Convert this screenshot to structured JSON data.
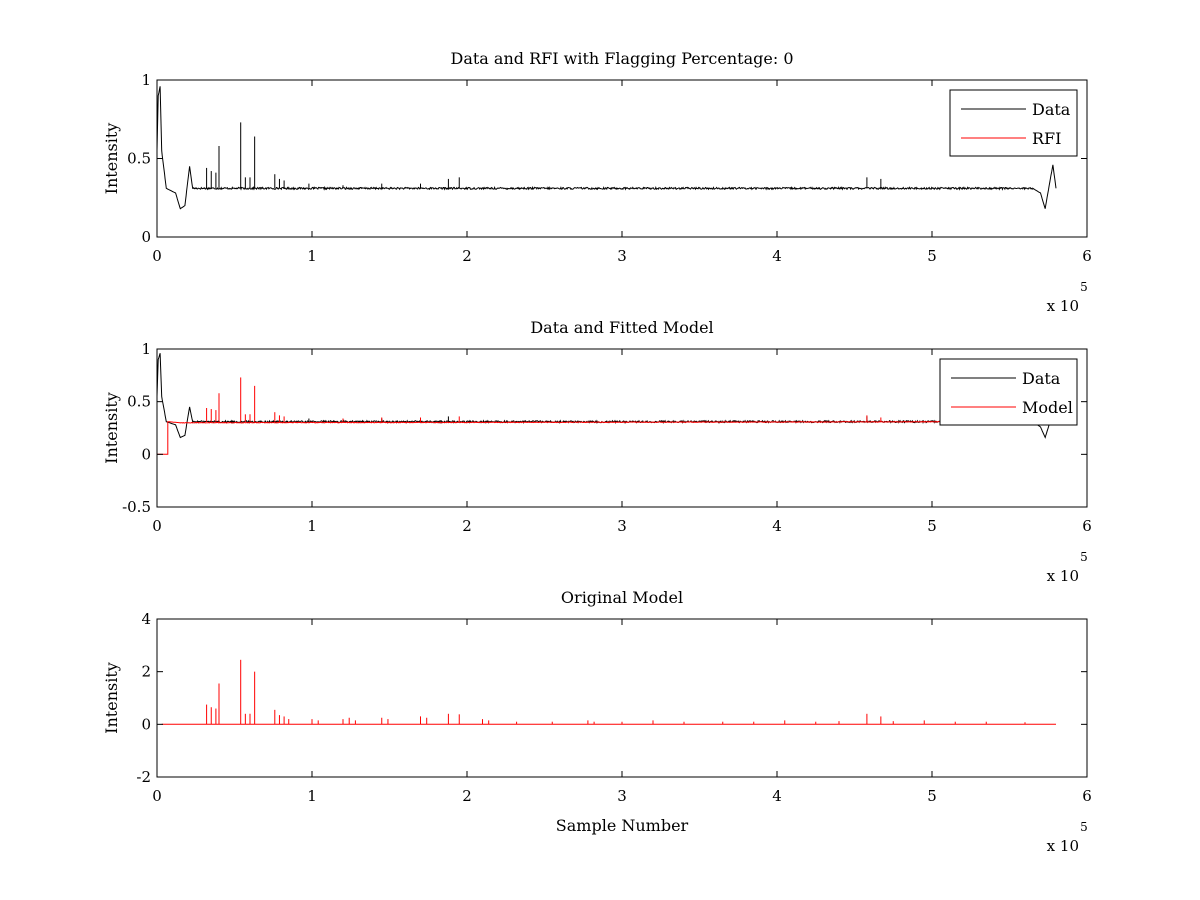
{
  "chart_data": [
    {
      "type": "line",
      "title": "Data and RFI with Flagging Percentage: 0",
      "xlabel": "",
      "ylabel": "Intensity",
      "xlim": [
        0,
        6
      ],
      "ylim": [
        0,
        1
      ],
      "x_multiplier": "x 10",
      "x_multiplier_exponent": "5",
      "xticks": [
        "0",
        "1",
        "2",
        "3",
        "4",
        "5",
        "6"
      ],
      "yticks": [
        "0",
        "0.5",
        "1"
      ],
      "legend": {
        "position": "top-right",
        "entries": [
          {
            "label": "Data",
            "color": "#000000"
          },
          {
            "label": "RFI",
            "color": "#ff0000"
          }
        ]
      },
      "series": [
        {
          "name": "Data",
          "color": "#000000",
          "baseline": 0.31,
          "points": [
            [
              0,
              0.55
            ],
            [
              0.008,
              0.9
            ],
            [
              0.02,
              0.96
            ],
            [
              0.03,
              0.55
            ],
            [
              0.06,
              0.31
            ],
            [
              0.12,
              0.28
            ],
            [
              0.15,
              0.18
            ],
            [
              0.18,
              0.2
            ],
            [
              0.21,
              0.45
            ],
            [
              0.23,
              0.31
            ],
            [
              5.65,
              0.31
            ],
            [
              5.7,
              0.28
            ],
            [
              5.73,
              0.18
            ],
            [
              5.76,
              0.35
            ],
            [
              5.78,
              0.46
            ],
            [
              5.8,
              0.31
            ]
          ],
          "spikes": [
            [
              0.32,
              0.44
            ],
            [
              0.35,
              0.42
            ],
            [
              0.38,
              0.41
            ],
            [
              0.4,
              0.58
            ],
            [
              0.54,
              0.73
            ],
            [
              0.57,
              0.38
            ],
            [
              0.6,
              0.38
            ],
            [
              0.63,
              0.64
            ],
            [
              0.76,
              0.4
            ],
            [
              0.79,
              0.37
            ],
            [
              0.82,
              0.36
            ],
            [
              0.98,
              0.34
            ],
            [
              1.2,
              0.33
            ],
            [
              1.45,
              0.34
            ],
            [
              1.7,
              0.34
            ],
            [
              1.88,
              0.37
            ],
            [
              1.95,
              0.38
            ],
            [
              4.58,
              0.38
            ],
            [
              4.67,
              0.37
            ]
          ]
        },
        {
          "name": "RFI",
          "color": "#ff0000",
          "points": []
        }
      ]
    },
    {
      "type": "line",
      "title": "Data and Fitted Model",
      "xlabel": "",
      "ylabel": "Intensity",
      "xlim": [
        0,
        6
      ],
      "ylim": [
        -0.5,
        1
      ],
      "x_multiplier": "x 10",
      "x_multiplier_exponent": "5",
      "xticks": [
        "0",
        "1",
        "2",
        "3",
        "4",
        "5",
        "6"
      ],
      "yticks": [
        "-0.5",
        "0",
        "0.5",
        "1"
      ],
      "legend": {
        "position": "top-right",
        "entries": [
          {
            "label": "Data",
            "color": "#000000"
          },
          {
            "label": "Model",
            "color": "#ff0000"
          }
        ]
      },
      "series": [
        {
          "name": "Data",
          "color": "#000000",
          "baseline": 0.31,
          "points": [
            [
              0,
              0.55
            ],
            [
              0.008,
              0.9
            ],
            [
              0.02,
              0.96
            ],
            [
              0.03,
              0.55
            ],
            [
              0.06,
              0.31
            ],
            [
              0.12,
              0.28
            ],
            [
              0.15,
              0.16
            ],
            [
              0.18,
              0.18
            ],
            [
              0.21,
              0.45
            ],
            [
              0.23,
              0.31
            ],
            [
              5.65,
              0.31
            ],
            [
              5.7,
              0.26
            ],
            [
              5.73,
              0.16
            ],
            [
              5.76,
              0.3
            ],
            [
              5.8,
              0.31
            ]
          ],
          "spikes": [
            [
              0.98,
              0.34
            ],
            [
              1.2,
              0.33
            ],
            [
              1.45,
              0.34
            ],
            [
              1.7,
              0.34
            ],
            [
              1.88,
              0.36
            ],
            [
              4.58,
              0.36
            ]
          ]
        },
        {
          "name": "Model",
          "color": "#ff0000",
          "baseline": 0.31,
          "points": [
            [
              0,
              0
            ],
            [
              0.07,
              0
            ],
            [
              0.07,
              0.31
            ],
            [
              0.15,
              0.3
            ],
            [
              5.8,
              0.31
            ]
          ],
          "spikes": [
            [
              0.32,
              0.44
            ],
            [
              0.35,
              0.43
            ],
            [
              0.38,
              0.42
            ],
            [
              0.4,
              0.58
            ],
            [
              0.54,
              0.73
            ],
            [
              0.57,
              0.38
            ],
            [
              0.6,
              0.38
            ],
            [
              0.63,
              0.65
            ],
            [
              0.76,
              0.4
            ],
            [
              0.79,
              0.37
            ],
            [
              0.82,
              0.36
            ],
            [
              1.2,
              0.34
            ],
            [
              1.45,
              0.35
            ],
            [
              1.7,
              0.35
            ],
            [
              1.95,
              0.36
            ],
            [
              4.58,
              0.37
            ],
            [
              4.67,
              0.35
            ]
          ]
        }
      ]
    },
    {
      "type": "line",
      "title": "Original Model",
      "xlabel": "Sample Number",
      "ylabel": "Intensity",
      "xlim": [
        0,
        6
      ],
      "ylim": [
        -2,
        4
      ],
      "x_multiplier": "x 10",
      "x_multiplier_exponent": "5",
      "xticks": [
        "0",
        "1",
        "2",
        "3",
        "4",
        "5",
        "6"
      ],
      "yticks": [
        "-2",
        "0",
        "2",
        "4"
      ],
      "series": [
        {
          "name": "",
          "color": "#ff0000",
          "baseline": 0,
          "points": [
            [
              0.03,
              0
            ],
            [
              5.8,
              0
            ]
          ],
          "spikes": [
            [
              0.32,
              0.75
            ],
            [
              0.35,
              0.65
            ],
            [
              0.38,
              0.6
            ],
            [
              0.4,
              1.55
            ],
            [
              0.54,
              2.45
            ],
            [
              0.57,
              0.4
            ],
            [
              0.6,
              0.4
            ],
            [
              0.63,
              2.0
            ],
            [
              0.76,
              0.55
            ],
            [
              0.79,
              0.35
            ],
            [
              0.82,
              0.3
            ],
            [
              0.85,
              0.2
            ],
            [
              1.0,
              0.2
            ],
            [
              1.04,
              0.15
            ],
            [
              1.2,
              0.2
            ],
            [
              1.24,
              0.25
            ],
            [
              1.28,
              0.15
            ],
            [
              1.45,
              0.25
            ],
            [
              1.49,
              0.2
            ],
            [
              1.7,
              0.3
            ],
            [
              1.74,
              0.25
            ],
            [
              1.88,
              0.4
            ],
            [
              1.95,
              0.38
            ],
            [
              2.1,
              0.2
            ],
            [
              2.14,
              0.15
            ],
            [
              2.32,
              0.1
            ],
            [
              2.55,
              0.1
            ],
            [
              2.78,
              0.15
            ],
            [
              2.82,
              0.1
            ],
            [
              3.0,
              0.1
            ],
            [
              3.2,
              0.15
            ],
            [
              3.4,
              0.1
            ],
            [
              3.65,
              0.1
            ],
            [
              3.85,
              0.1
            ],
            [
              4.05,
              0.15
            ],
            [
              4.25,
              0.1
            ],
            [
              4.4,
              0.12
            ],
            [
              4.58,
              0.4
            ],
            [
              4.67,
              0.3
            ],
            [
              4.75,
              0.12
            ],
            [
              4.95,
              0.15
            ],
            [
              5.15,
              0.1
            ],
            [
              5.35,
              0.1
            ],
            [
              5.6,
              0.08
            ]
          ]
        }
      ]
    }
  ]
}
